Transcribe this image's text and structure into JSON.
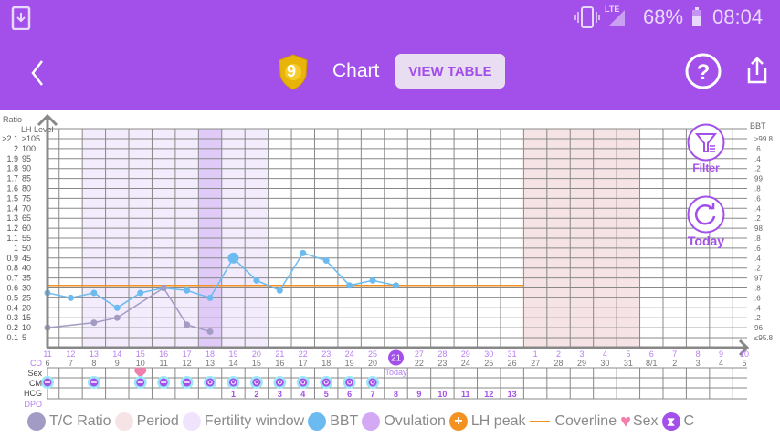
{
  "status_bar": {
    "battery": "68%",
    "time": "08:04",
    "network": "LTE",
    "icons": [
      "download-icon",
      "vibrate-icon",
      "signal-icon",
      "battery-icon"
    ]
  },
  "header": {
    "title": "Chart",
    "badge_number": "9",
    "view_table_label": "VIEW TABLE",
    "icons": [
      "back-icon",
      "help-icon",
      "share-icon"
    ]
  },
  "side_buttons": {
    "filter_label": "Filter",
    "today_label": "Today"
  },
  "axes": {
    "left_title_ratio": "Ratio",
    "left_title_lh": "LH Level",
    "right_title": "BBT",
    "ratio_labels": [
      "≥2.1",
      "2",
      "1.9",
      "1.8",
      "1.7",
      "1.6",
      "1.5",
      "1.4",
      "1.3",
      "1.2",
      "1.1",
      "1",
      "0.9",
      "0.8",
      "0.7",
      "0.6",
      "0.5",
      "0.4",
      "0.3",
      "0.2",
      "0.1"
    ],
    "lh_labels": [
      "≥105",
      "100",
      "95",
      "90",
      "85",
      "80",
      "75",
      "70",
      "65",
      "60",
      "55",
      "50",
      "45",
      "40",
      "35",
      "30",
      "25",
      "20",
      "15",
      "10",
      "5"
    ],
    "bbt_labels": [
      "≥99.8",
      ".6",
      ".4",
      ".2",
      "99",
      ".8",
      ".6",
      ".4",
      ".2",
      "98",
      ".8",
      ".6",
      ".4",
      ".2",
      "97",
      ".8",
      ".6",
      ".4",
      ".2",
      "96",
      "≤95.8"
    ]
  },
  "row_labels": {
    "cd": "CD",
    "sex": "Sex",
    "cm": "CM",
    "hcg": "HCG",
    "dpo": "DPO"
  },
  "today_label": "Today",
  "today_cd": "21",
  "colors": {
    "brand": "#a34fea",
    "bbt": "#6bbaf0",
    "tc_ratio": "#a29bc4",
    "period": "#f6e3e6",
    "fertility": "#f3ecfd",
    "ovulation": "#e0cbf8",
    "coverline": "#f39220",
    "sex": "#f17fae"
  },
  "chart_data": {
    "type": "line",
    "x_dates": [
      "11",
      "12",
      "13",
      "14",
      "15",
      "16",
      "17",
      "18",
      "19",
      "20",
      "21",
      "22",
      "23",
      "24",
      "25",
      "26",
      "27",
      "28",
      "29",
      "30",
      "31",
      "1",
      "2",
      "3",
      "4",
      "5",
      "6",
      "7",
      "8",
      "9",
      "10"
    ],
    "cycle_days": [
      "6",
      "7",
      "8",
      "9",
      "10",
      "11",
      "12",
      "13",
      "14",
      "15",
      "16",
      "17",
      "18",
      "19",
      "20",
      "21",
      "22",
      "23",
      "24",
      "25",
      "26",
      "27",
      "28",
      "29",
      "30",
      "31",
      "8/1",
      "2",
      "3",
      "4",
      "5"
    ],
    "today_index": 15,
    "fertility_window_indices": [
      2,
      3,
      4,
      5,
      6,
      7,
      8,
      9
    ],
    "ovulation_index": 7,
    "period_indices": [
      21,
      22,
      23,
      24,
      25
    ],
    "coverline": 96.85,
    "bbt_ylim": [
      95.8,
      99.8
    ],
    "ratio_ylim": [
      0.1,
      2.1
    ],
    "series": [
      {
        "name": "BBT",
        "points": [
          [
            0,
            96.7
          ],
          [
            1,
            96.6
          ],
          [
            2,
            96.7
          ],
          [
            3,
            96.4
          ],
          [
            4,
            96.7
          ],
          [
            5,
            96.8
          ],
          [
            6,
            96.75
          ],
          [
            7,
            96.6
          ],
          [
            8,
            97.4
          ],
          [
            9,
            96.95
          ],
          [
            10,
            96.75
          ],
          [
            11,
            97.5
          ],
          [
            12,
            97.35
          ],
          [
            13,
            96.85
          ],
          [
            14,
            96.95
          ],
          [
            15,
            96.85
          ]
        ],
        "highlight_index": 8
      },
      {
        "name": "T/C Ratio",
        "points": [
          [
            0,
            0.2
          ],
          [
            2,
            0.25
          ],
          [
            3,
            0.3
          ],
          [
            5,
            0.6
          ],
          [
            6,
            0.23
          ],
          [
            7,
            0.16
          ]
        ]
      }
    ],
    "sex_indices": [
      4
    ],
    "cm_entries": [
      [
        0,
        "dry"
      ],
      [
        2,
        "dry"
      ],
      [
        4,
        "dry"
      ],
      [
        5,
        "dry"
      ],
      [
        6,
        "dry"
      ],
      [
        7,
        "creamy"
      ],
      [
        8,
        "creamy"
      ],
      [
        9,
        "creamy"
      ],
      [
        10,
        "creamy"
      ],
      [
        11,
        "creamy"
      ],
      [
        12,
        "creamy"
      ],
      [
        13,
        "creamy"
      ],
      [
        14,
        "creamy"
      ]
    ],
    "dpo": [
      "1",
      "2",
      "3",
      "4",
      "5",
      "6",
      "7",
      "8",
      "9",
      "10",
      "11",
      "12",
      "13"
    ],
    "dpo_start_index": 8
  },
  "legend": [
    {
      "label": "T/C Ratio",
      "color": "#a29bc4",
      "kind": "dot"
    },
    {
      "label": "Period",
      "color": "#f6e3e6",
      "kind": "dot"
    },
    {
      "label": "Fertility window",
      "color": "#f0e4fd",
      "kind": "dot"
    },
    {
      "label": "BBT",
      "color": "#6bbaf0",
      "kind": "dot"
    },
    {
      "label": "Ovulation",
      "color": "#d3a9f5",
      "kind": "dot"
    },
    {
      "label": "LH peak",
      "color": "#f39220",
      "kind": "plus"
    },
    {
      "label": "Coverline",
      "color": "#f39220",
      "kind": "line"
    },
    {
      "label": "Sex",
      "color": "#f17fae",
      "kind": "heart"
    },
    {
      "label": "C",
      "color": "#a34fea",
      "kind": "hourglass"
    }
  ]
}
